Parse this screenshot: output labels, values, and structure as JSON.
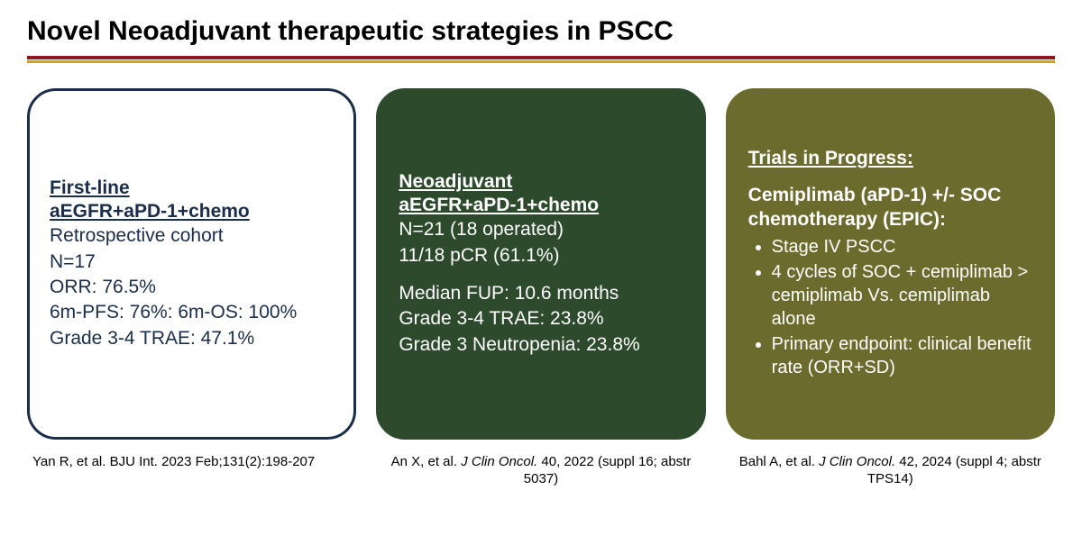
{
  "title": "Novel Neoadjuvant therapeutic strategies in PSCC",
  "rule_colors": {
    "top": "#8b1a1a",
    "bottom": "#d4a017"
  },
  "cards": [
    {
      "style": {
        "background": "#ffffff",
        "border": "#1a2d4a",
        "text_color": "#1a2d4a",
        "border_radius": 32,
        "font_size": 21
      },
      "heading_lines": [
        "First-line",
        "aEGFR+aPD-1+chemo"
      ],
      "body_lines": [
        "Retrospective cohort",
        "N=17",
        "ORR: 76.5%",
        "6m-PFS: 76%: 6m-OS: 100%",
        "Grade 3-4 TRAE: 47.1%"
      ]
    },
    {
      "style": {
        "background": "#2d4a2d",
        "border": "#2d4a2d",
        "text_color": "#ffffff",
        "border_radius": 32,
        "font_size": 21
      },
      "heading_lines": [
        "Neoadjuvant",
        "aEGFR+aPD-1+chemo"
      ],
      "body_lines_a": [
        "N=21 (18 operated)",
        "11/18 pCR (61.1%)"
      ],
      "body_lines_b": [
        "Median FUP: 10.6 months",
        "Grade 3-4 TRAE: 23.8%",
        "Grade 3 Neutropenia: 23.8%"
      ]
    },
    {
      "style": {
        "background": "#6b6b2d",
        "border": "#6b6b2d",
        "text_color": "#ffffff",
        "border_radius": 32,
        "font_size": 21
      },
      "heading_lines": [
        "Trials in Progress:"
      ],
      "sub_heading": "Cemiplimab (aPD-1) +/- SOC chemotherapy (EPIC):",
      "bullets": [
        "Stage IV PSCC",
        "4 cycles of SOC + cemiplimab > cemiplimab Vs. cemiplimab alone",
        "Primary endpoint: clinical benefit rate (ORR+SD)"
      ]
    }
  ],
  "citations": [
    {
      "plain_a": "Yan R, et al. BJU Int. 2023 Feb;131(2):198-207",
      "ital": "",
      "plain_b": ""
    },
    {
      "plain_a": "An X, et al. ",
      "ital": "J Clin Oncol.",
      "plain_b": " 40, 2022 (suppl 16; abstr 5037)"
    },
    {
      "plain_a": "Bahl A, et al. ",
      "ital": "J Clin Oncol.",
      "plain_b": " 42, 2024 (suppl 4; abstr TPS14)"
    }
  ]
}
